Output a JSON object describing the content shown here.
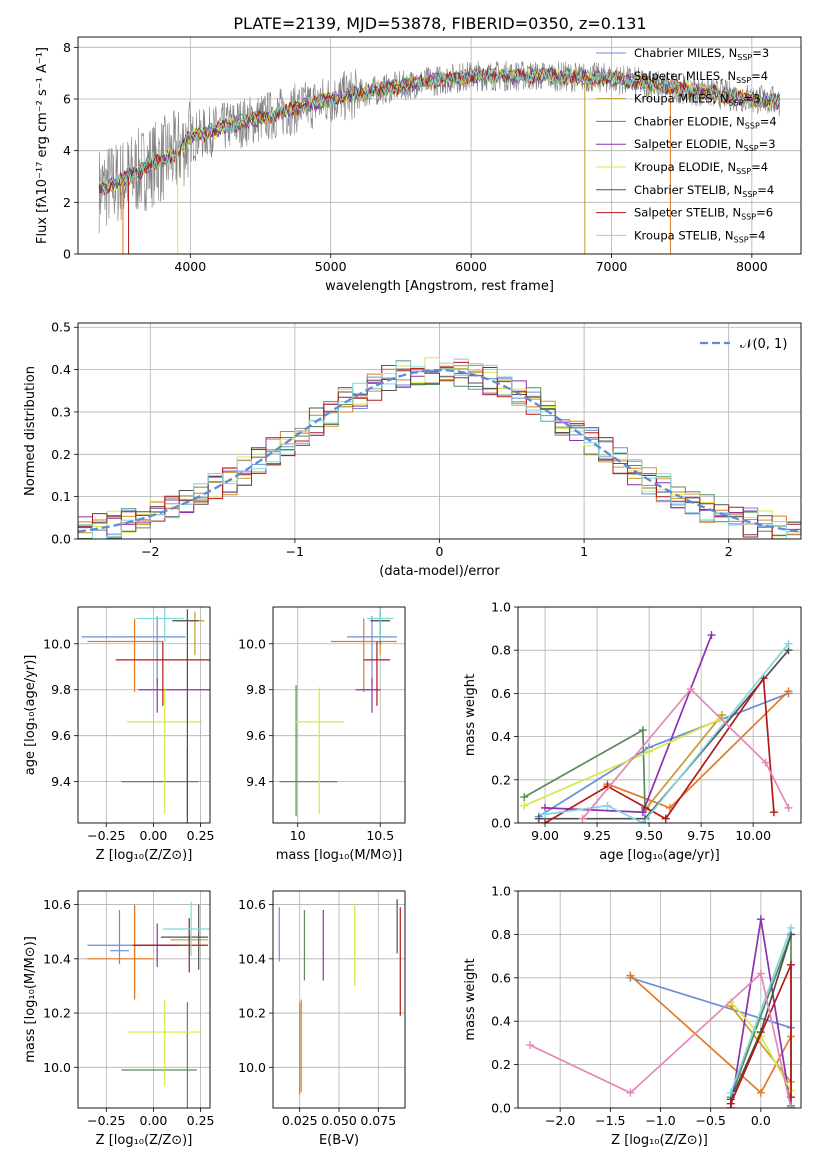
{
  "figure_title": "PLATE=2139, MJD=53878, FIBERID=0350, z=0.131",
  "series_styles": [
    {
      "name": "Chabrier MILES",
      "nssp": "3",
      "color": "#6b8ed6"
    },
    {
      "name": "Salpeter MILES",
      "nssp": "4",
      "color": "#e07b28"
    },
    {
      "name": "Kroupa MILES",
      "nssp": "3",
      "color": "#c89a2a"
    },
    {
      "name": "Chabrier ELODIE",
      "nssp": "4",
      "color": "#5a8a5a"
    },
    {
      "name": "Salpeter ELODIE",
      "nssp": "3",
      "color": "#8e30b0"
    },
    {
      "name": "Kroupa ELODIE",
      "nssp": "4",
      "color": "#d6e84a"
    },
    {
      "name": "Chabrier STELIB",
      "nssp": "4",
      "color": "#505050"
    },
    {
      "name": "Salpeter STELIB",
      "nssp": "6",
      "color": "#b21a1a"
    },
    {
      "name": "Kroupa STELIB",
      "nssp": "4",
      "color": "#7fd8de"
    }
  ],
  "chart_data": [
    {
      "id": "spectrum",
      "type": "line",
      "xlabel": "wavelength [Angstrom, rest frame]",
      "ylabel": "Flux [fλ10⁻¹⁷ erg cm⁻² s⁻¹ A⁻¹]",
      "xlim": [
        3200,
        8350
      ],
      "ylim": [
        0,
        8.4
      ],
      "xticks": [
        4000,
        5000,
        6000,
        7000,
        8000
      ],
      "yticks": [
        0,
        2,
        4,
        6,
        8
      ],
      "grid": true,
      "legend": "top-right",
      "data_x_range": [
        3350,
        8200
      ],
      "continuum": [
        [
          3350,
          2.5
        ],
        [
          3500,
          2.8
        ],
        [
          3700,
          3.4
        ],
        [
          3900,
          3.9
        ],
        [
          4000,
          4.5
        ],
        [
          4300,
          5.0
        ],
        [
          4600,
          5.4
        ],
        [
          5000,
          6.0
        ],
        [
          5300,
          6.3
        ],
        [
          5600,
          6.6
        ],
        [
          6000,
          6.9
        ],
        [
          6500,
          6.9
        ],
        [
          7000,
          6.8
        ],
        [
          7500,
          6.4
        ],
        [
          8000,
          6.0
        ],
        [
          8200,
          5.9
        ]
      ]
    },
    {
      "id": "residuals",
      "type": "bar",
      "xlabel": "(data-model)/error",
      "ylabel": "Normed distribution",
      "xlim": [
        -2.5,
        2.5
      ],
      "ylim": [
        0,
        0.51
      ],
      "xticks": [
        -2,
        -1,
        0,
        1,
        2
      ],
      "yticks": [
        0.0,
        0.1,
        0.2,
        0.3,
        0.4,
        0.5
      ],
      "grid": true,
      "legend": "top-right",
      "reference": {
        "name": "𝒩(0, 1)",
        "mean": 0,
        "sigma": 1,
        "color": "#5b8bd9"
      },
      "bin_width": 0.1
    },
    {
      "id": "age-vs-Z",
      "type": "scatter",
      "xlabel": "Z [log₁₀(Z/Z⊙)]",
      "ylabel": "age  [log₁₀(age/yr)]",
      "xlim": [
        -0.4,
        0.3
      ],
      "ylim": [
        9.22,
        10.16
      ],
      "xticks": [
        -0.25,
        0.0,
        0.25
      ],
      "xticklabels": [
        "−0.25",
        "0.00",
        "0.25"
      ],
      "yticks": [
        9.4,
        9.6,
        9.8,
        10.0
      ],
      "grid": true,
      "points": [
        {
          "x": 0.02,
          "y": 10.03,
          "xerr": [
            0.4,
            0.15
          ],
          "yerr": [
            0.2,
            0.09
          ]
        },
        {
          "x": -0.1,
          "y": 10.01,
          "xerr": [
            0.25,
            0.15
          ],
          "yerr": [
            0.22,
            0.1
          ]
        },
        {
          "x": 0.22,
          "y": 10.1,
          "xerr": [
            0.1,
            0.05
          ],
          "yerr": [
            0.15,
            0.04
          ]
        },
        {
          "x": 0.18,
          "y": 9.4,
          "xerr": [
            0.35,
            0.06
          ],
          "yerr": [
            0.15,
            0.15
          ]
        },
        {
          "x": 0.02,
          "y": 9.8,
          "xerr": [
            0.1,
            0.3
          ],
          "yerr": [
            0.1,
            0.05
          ]
        },
        {
          "x": 0.06,
          "y": 9.66,
          "xerr": [
            0.2,
            0.2
          ],
          "yerr": [
            0.4,
            0.15
          ]
        },
        {
          "x": 0.18,
          "y": 10.1,
          "xerr": [
            0.08,
            0.06
          ],
          "yerr": [
            0.9,
            0.05
          ]
        },
        {
          "x": 0.05,
          "y": 9.93,
          "xerr": [
            0.25,
            0.25
          ],
          "yerr": [
            0.2,
            0.08
          ]
        },
        {
          "x": 0.06,
          "y": 10.11,
          "xerr": [
            0.15,
            0.1
          ],
          "yerr": [
            0.1,
            0.05
          ]
        }
      ]
    },
    {
      "id": "age-vs-mass",
      "type": "scatter",
      "xlabel": "mass [log₁₀(M/M⊙)]",
      "ylabel": "",
      "xlim": [
        9.85,
        10.65
      ],
      "ylim": [
        9.22,
        10.16
      ],
      "xticks": [
        10.0,
        10.5
      ],
      "yticks": [
        9.4,
        9.6,
        9.8,
        10.0
      ],
      "grid": true,
      "points": [
        {
          "x": 10.45,
          "y": 10.03,
          "xerr": [
            0.15,
            0.15
          ],
          "yerr": [
            0.2,
            0.09
          ]
        },
        {
          "x": 10.4,
          "y": 10.01,
          "xerr": [
            0.2,
            0.2
          ],
          "yerr": [
            0.22,
            0.1
          ]
        },
        {
          "x": 10.5,
          "y": 10.1,
          "xerr": [
            0.05,
            0.05
          ],
          "yerr": [
            0.15,
            0.04
          ]
        },
        {
          "x": 9.99,
          "y": 9.4,
          "xerr": [
            0.1,
            0.25
          ],
          "yerr": [
            0.15,
            0.42
          ]
        },
        {
          "x": 10.45,
          "y": 9.8,
          "xerr": [
            0.1,
            0.05
          ],
          "yerr": [
            0.1,
            0.05
          ]
        },
        {
          "x": 10.13,
          "y": 9.66,
          "xerr": [
            0.15,
            0.15
          ],
          "yerr": [
            0.4,
            0.15
          ]
        },
        {
          "x": 10.5,
          "y": 10.1,
          "xerr": [
            0.06,
            0.06
          ],
          "yerr": [
            0.1,
            0.05
          ]
        },
        {
          "x": 10.48,
          "y": 9.93,
          "xerr": [
            0.08,
            0.08
          ],
          "yerr": [
            0.2,
            0.08
          ]
        },
        {
          "x": 10.5,
          "y": 10.11,
          "xerr": [
            0.08,
            0.08
          ],
          "yerr": [
            0.1,
            0.05
          ]
        }
      ]
    },
    {
      "id": "mass-weight-vs-age",
      "type": "line",
      "xlabel": "age  [log₁₀(age/yr)]",
      "ylabel": "mass weight",
      "xlim": [
        8.87,
        10.23
      ],
      "ylim": [
        0,
        1.0
      ],
      "xticks": [
        9.0,
        9.25,
        9.5,
        9.75,
        10.0
      ],
      "xticklabels": [
        "9.00",
        "9.25",
        "9.50",
        "9.75",
        "10.00"
      ],
      "yticks": [
        0.0,
        0.2,
        0.4,
        0.6,
        0.8,
        1.0
      ],
      "grid": true,
      "series": [
        {
          "x": [
            8.97,
            9.5,
            10.17
          ],
          "y": [
            0.03,
            0.35,
            0.6
          ]
        },
        {
          "x": [
            9.3,
            9.6,
            10.17
          ],
          "y": [
            0.18,
            0.07,
            0.61
          ]
        },
        {
          "x": [
            9.48,
            9.85
          ],
          "y": [
            0.06,
            0.5
          ]
        },
        {
          "x": [
            8.9,
            9.47,
            9.48
          ],
          "y": [
            0.12,
            0.43,
            0.07
          ]
        },
        {
          "x": [
            9.0,
            9.47,
            9.8
          ],
          "y": [
            0.07,
            0.05,
            0.87
          ]
        },
        {
          "x": [
            8.9,
            9.5,
            9.84
          ],
          "y": [
            0.08,
            0.33,
            0.48
          ]
        },
        {
          "x": [
            8.97,
            9.48,
            10.17
          ],
          "y": [
            0.02,
            0.02,
            0.8
          ]
        },
        {
          "x": [
            9.0,
            9.3,
            9.58,
            10.05,
            10.1
          ],
          "y": [
            0.0,
            0.17,
            0.02,
            0.67,
            0.05
          ]
        },
        {
          "x": [
            9.0,
            9.3,
            9.47,
            10.17
          ],
          "y": [
            0.04,
            0.08,
            0.0,
            0.83
          ]
        },
        {
          "x": [
            9.18,
            9.7,
            10.06,
            10.17
          ],
          "y": [
            0.02,
            0.62,
            0.28,
            0.07
          ]
        }
      ]
    },
    {
      "id": "mass-vs-Z",
      "type": "scatter",
      "xlabel": "Z [log₁₀(Z/Z⊙)]",
      "ylabel": "mass [log₁₀(M/M⊙)]",
      "xlim": [
        -0.4,
        0.3
      ],
      "ylim": [
        9.85,
        10.65
      ],
      "xticks": [
        -0.25,
        0.0,
        0.25
      ],
      "xticklabels": [
        "−0.25",
        "0.00",
        "0.25"
      ],
      "yticks": [
        10.0,
        10.2,
        10.4,
        10.6
      ],
      "grid": true,
      "points": [
        {
          "x": -0.1,
          "y": 10.45,
          "xerr": [
            0.25,
            0.25
          ],
          "yerr": [
            0.2,
            0.15
          ]
        },
        {
          "x": -0.1,
          "y": 10.4,
          "xerr": [
            0.25,
            0.1
          ],
          "yerr": [
            0.15,
            0.2
          ]
        },
        {
          "x": 0.19,
          "y": 10.47,
          "xerr": [
            0.1,
            0.1
          ],
          "yerr": [
            0.05,
            0.05
          ]
        },
        {
          "x": 0.18,
          "y": 9.99,
          "xerr": [
            0.35,
            0.05
          ],
          "yerr": [
            0.4,
            0.25
          ]
        },
        {
          "x": 0.02,
          "y": 10.45,
          "xerr": [
            0.12,
            0.1
          ],
          "yerr": [
            0.08,
            0.08
          ]
        },
        {
          "x": 0.06,
          "y": 10.13,
          "xerr": [
            0.2,
            0.2
          ],
          "yerr": [
            0.2,
            0.12
          ]
        },
        {
          "x": 0.24,
          "y": 10.48,
          "xerr": [
            0.2,
            0.05
          ],
          "yerr": [
            0.12,
            0.12
          ]
        },
        {
          "x": 0.19,
          "y": 10.45,
          "xerr": [
            0.3,
            0.1
          ],
          "yerr": [
            0.1,
            0.1
          ]
        },
        {
          "x": 0.2,
          "y": 10.51,
          "xerr": [
            0.15,
            0.1
          ],
          "yerr": [
            0.1,
            0.1
          ]
        },
        {
          "x": -0.18,
          "y": 10.43,
          "xerr": [
            0.05,
            0.05
          ],
          "yerr": [
            0.05,
            0.15
          ]
        }
      ]
    },
    {
      "id": "mass-vs-ebv",
      "type": "scatter",
      "xlabel": "E(B-V)",
      "ylabel": "",
      "xlim": [
        0.008,
        0.092
      ],
      "ylim": [
        9.85,
        10.65
      ],
      "xticks": [
        0.025,
        0.05,
        0.075
      ],
      "xticklabels": [
        "0.025",
        "0.050",
        "0.075"
      ],
      "yticks": [
        10.0,
        10.2,
        10.4,
        10.6
      ],
      "grid": true,
      "points": [
        {
          "x": 0.012,
          "y": 10.49,
          "yerr": [
            0.1,
            0.1
          ]
        },
        {
          "x": 0.025,
          "y": 10.07,
          "yerr": [
            0.17,
            0.17
          ]
        },
        {
          "x": 0.026,
          "y": 10.08,
          "yerr": [
            0.17,
            0.17
          ]
        },
        {
          "x": 0.028,
          "y": 10.45,
          "yerr": [
            0.13,
            0.13
          ]
        },
        {
          "x": 0.04,
          "y": 10.45,
          "yerr": [
            0.13,
            0.13
          ]
        },
        {
          "x": 0.06,
          "y": 10.45,
          "yerr": [
            0.15,
            0.15
          ]
        },
        {
          "x": 0.087,
          "y": 10.52,
          "yerr": [
            0.1,
            0.1
          ]
        },
        {
          "x": 0.089,
          "y": 10.39,
          "yerr": [
            0.2,
            0.2
          ]
        }
      ]
    },
    {
      "id": "mass-weight-vs-Z",
      "type": "line",
      "xlabel": "Z [log₁₀(Z/Z⊙)]",
      "ylabel": "mass weight",
      "xlim": [
        -2.42,
        0.4
      ],
      "ylim": [
        0,
        1.0
      ],
      "xticks": [
        -2.0,
        -1.5,
        -1.0,
        -0.5,
        0.0
      ],
      "xticklabels": [
        "−2.0",
        "−1.5",
        "−1.0",
        "−0.5",
        "0.0"
      ],
      "yticks": [
        0.0,
        0.2,
        0.4,
        0.6,
        0.8,
        1.0
      ],
      "grid": true,
      "series": [
        {
          "x": [
            -1.3,
            0.3
          ],
          "y": [
            0.6,
            0.37
          ]
        },
        {
          "x": [
            -1.3,
            0.0,
            0.3
          ],
          "y": [
            0.61,
            0.07,
            0.33
          ]
        },
        {
          "x": [
            -0.3,
            0.3
          ],
          "y": [
            0.47,
            0.12
          ]
        },
        {
          "x": [
            -0.3,
            0.3,
            0.3
          ],
          "y": [
            0.05,
            0.8,
            0.01
          ]
        },
        {
          "x": [
            -0.3,
            0.0,
            0.3
          ],
          "y": [
            0.0,
            0.87,
            0.0
          ]
        },
        {
          "x": [
            -0.3,
            0.0,
            0.3
          ],
          "y": [
            0.49,
            0.33,
            0.08
          ]
        },
        {
          "x": [
            -0.3,
            0.0,
            0.3
          ],
          "y": [
            0.04,
            0.35,
            0.8
          ]
        },
        {
          "x": [
            -0.3,
            0.3,
            0.3
          ],
          "y": [
            0.02,
            0.66,
            0.05
          ]
        },
        {
          "x": [
            -0.3,
            0.3
          ],
          "y": [
            0.07,
            0.83
          ]
        },
        {
          "x": [
            -2.3,
            -1.3,
            0.0,
            0.3
          ],
          "y": [
            0.29,
            0.07,
            0.62,
            0.0
          ]
        }
      ]
    }
  ]
}
